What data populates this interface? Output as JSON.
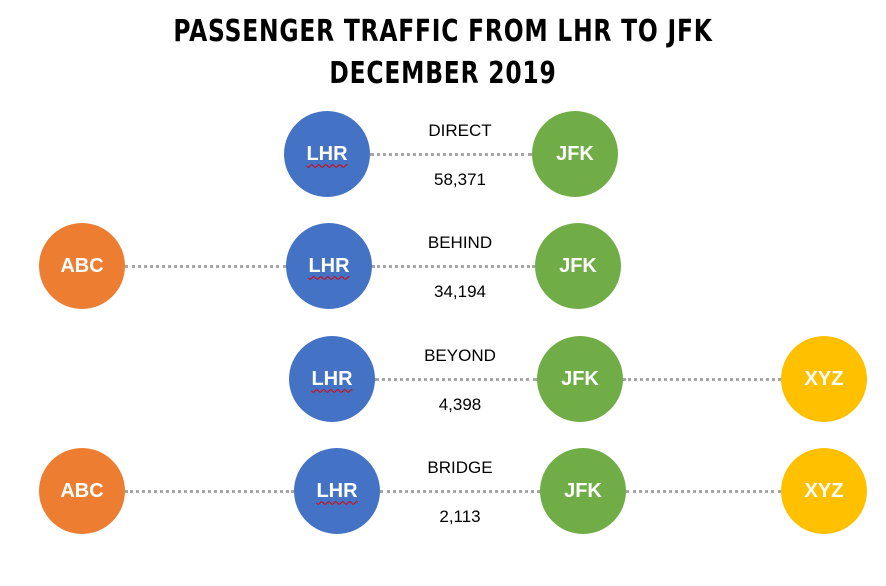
{
  "title": {
    "line1": "PASSENGER TRAFFIC FROM LHR TO JFK",
    "line2": "DECEMBER 2019"
  },
  "colors": {
    "ABC": "#ED7D31",
    "LHR": "#4472C4",
    "JFK": "#70AD47",
    "XYZ": "#FFC000"
  },
  "rows": [
    {
      "type": "DIRECT",
      "passengers": "58,371",
      "nodes": [
        "LHR",
        "JFK"
      ]
    },
    {
      "type": "BEHIND",
      "passengers": "34,194",
      "nodes": [
        "ABC",
        "LHR",
        "JFK"
      ]
    },
    {
      "type": "BEYOND",
      "passengers": "4,398",
      "nodes": [
        "LHR",
        "JFK",
        "XYZ"
      ]
    },
    {
      "type": "BRIDGE",
      "passengers": "2,113",
      "nodes": [
        "ABC",
        "LHR",
        "JFK",
        "XYZ"
      ]
    }
  ]
}
